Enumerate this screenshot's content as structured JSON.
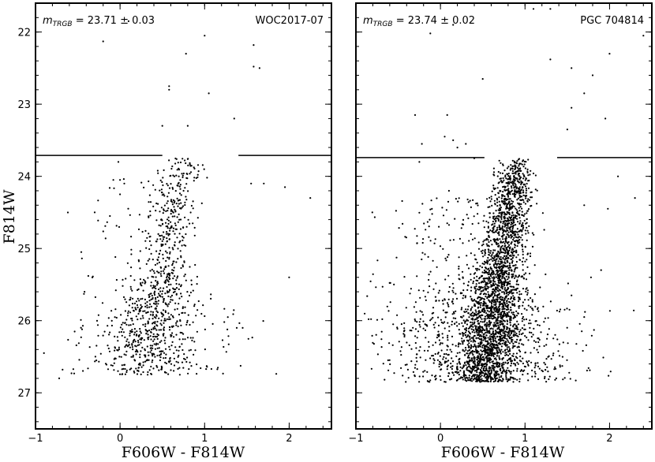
{
  "chart_data": [
    {
      "type": "scatter",
      "panel": "left",
      "title": "",
      "galaxy_label": "WOC2017-07",
      "trgb_prefix": "m",
      "trgb_subscript": "TRGB",
      "trgb_suffix": " = 23.71 ± 0.03",
      "trgb_mag": 23.71,
      "trgb_gap": [
        0.5,
        1.4
      ],
      "xlabel": "F606W - F814W",
      "ylabel": "F814W",
      "xlim": [
        -1.0,
        2.5
      ],
      "ylim": [
        27.5,
        21.6
      ],
      "y_inverted": true,
      "xticks": [
        -1,
        0,
        1,
        2
      ],
      "xtick_labels": [
        "−1",
        "0",
        "1",
        "2"
      ],
      "yticks": [
        22,
        23,
        24,
        25,
        26,
        27
      ],
      "ytick_labels": [
        "22",
        "23",
        "24",
        "25",
        "26",
        "27"
      ],
      "marker_color": "#000000",
      "sparse_points": [
        [
          -0.9,
          26.45
        ],
        [
          -0.68,
          26.68
        ],
        [
          -0.2,
          22.13
        ],
        [
          0.1,
          21.85
        ],
        [
          0.5,
          23.3
        ],
        [
          1.35,
          23.2
        ],
        [
          1.58,
          22.18
        ],
        [
          1.58,
          22.48
        ],
        [
          1.65,
          22.5
        ],
        [
          1.0,
          22.05
        ],
        [
          0.78,
          22.3
        ],
        [
          0.58,
          22.75
        ],
        [
          0.58,
          22.8
        ],
        [
          0.8,
          23.3
        ],
        [
          1.05,
          22.85
        ],
        [
          1.55,
          24.1
        ],
        [
          1.7,
          24.1
        ],
        [
          1.95,
          24.15
        ],
        [
          2.25,
          24.3
        ],
        [
          2.0,
          25.4
        ],
        [
          1.38,
          26.1
        ],
        [
          1.45,
          26.1
        ],
        [
          -0.02,
          23.8
        ],
        [
          0.0,
          24.05
        ],
        [
          0.05,
          24.1
        ],
        [
          -0.08,
          24.05
        ],
        [
          -0.12,
          24.55
        ],
        [
          0.0,
          24.25
        ],
        [
          -0.3,
          24.5
        ],
        [
          -0.42,
          25.6
        ]
      ],
      "populations": [
        {
          "seed": 17,
          "n": 760,
          "mag": [
            23.72,
            26.75
          ],
          "c_base": 0.7,
          "c_slope": -0.14,
          "c_sigma": 0.13,
          "skew_power": 0.85
        },
        {
          "seed": 29,
          "n": 220,
          "mag": [
            25.4,
            26.75
          ],
          "c_base": 0.45,
          "c_slope": 0.0,
          "c_sigma": 0.32,
          "skew_power": 0.6
        },
        {
          "seed": 43,
          "n": 70,
          "mag": [
            24.0,
            26.8
          ],
          "c_base": -0.05,
          "c_slope": 0.0,
          "c_sigma": 0.25,
          "skew_power": 1.0
        }
      ]
    },
    {
      "type": "scatter",
      "panel": "right",
      "title": "",
      "galaxy_label": "PGC 704814",
      "trgb_prefix": "m",
      "trgb_subscript": "TRGB",
      "trgb_suffix": " = 23.74 ± 0.02",
      "trgb_mag": 23.74,
      "trgb_gap": [
        0.52,
        1.38
      ],
      "xlabel": "F606W - F814W",
      "ylabel": "",
      "xlim": [
        -1.0,
        2.5
      ],
      "ylim": [
        27.5,
        21.6
      ],
      "y_inverted": true,
      "xticks": [
        -1,
        0,
        1,
        2
      ],
      "xtick_labels": [
        "−1",
        "0",
        "1",
        "2"
      ],
      "yticks": [
        22,
        23,
        24,
        25,
        26,
        27
      ],
      "ytick_labels": [],
      "marker_color": "#000000",
      "sparse_points": [
        [
          -0.12,
          22.02
        ],
        [
          0.15,
          21.9
        ],
        [
          1.1,
          21.68
        ],
        [
          1.3,
          21.68
        ],
        [
          2.4,
          22.05
        ],
        [
          0.5,
          22.65
        ],
        [
          1.3,
          22.38
        ],
        [
          1.55,
          22.5
        ],
        [
          1.8,
          22.6
        ],
        [
          2.0,
          22.3
        ],
        [
          1.95,
          23.2
        ],
        [
          1.7,
          22.85
        ],
        [
          1.5,
          23.35
        ],
        [
          1.55,
          23.05
        ],
        [
          -0.3,
          23.15
        ],
        [
          -0.25,
          23.8
        ],
        [
          -0.22,
          23.55
        ],
        [
          0.05,
          23.45
        ],
        [
          0.15,
          23.5
        ],
        [
          0.08,
          23.15
        ],
        [
          0.2,
          23.6
        ],
        [
          0.3,
          23.55
        ],
        [
          0.4,
          23.75
        ],
        [
          0.1,
          24.2
        ],
        [
          0.45,
          24.65
        ],
        [
          1.7,
          24.4
        ],
        [
          1.78,
          25.4
        ],
        [
          1.9,
          25.3
        ],
        [
          1.55,
          25.65
        ],
        [
          1.7,
          25.95
        ],
        [
          1.98,
          24.45
        ],
        [
          2.1,
          24.0
        ],
        [
          2.3,
          24.3
        ],
        [
          -0.85,
          25.98
        ],
        [
          -0.55,
          25.5
        ]
      ],
      "populations": [
        {
          "seed": 101,
          "n": 2400,
          "mag": [
            23.75,
            26.85
          ],
          "c_base": 0.88,
          "c_slope": -0.13,
          "c_sigma": 0.11,
          "skew_power": 0.8
        },
        {
          "seed": 131,
          "n": 700,
          "mag": [
            25.3,
            26.85
          ],
          "c_base": 0.55,
          "c_slope": 0.0,
          "c_sigma": 0.33,
          "skew_power": 0.55
        },
        {
          "seed": 157,
          "n": 260,
          "mag": [
            24.3,
            26.8
          ],
          "c_base": 0.1,
          "c_slope": 0.0,
          "c_sigma": 0.38,
          "skew_power": 1.0
        }
      ]
    }
  ]
}
